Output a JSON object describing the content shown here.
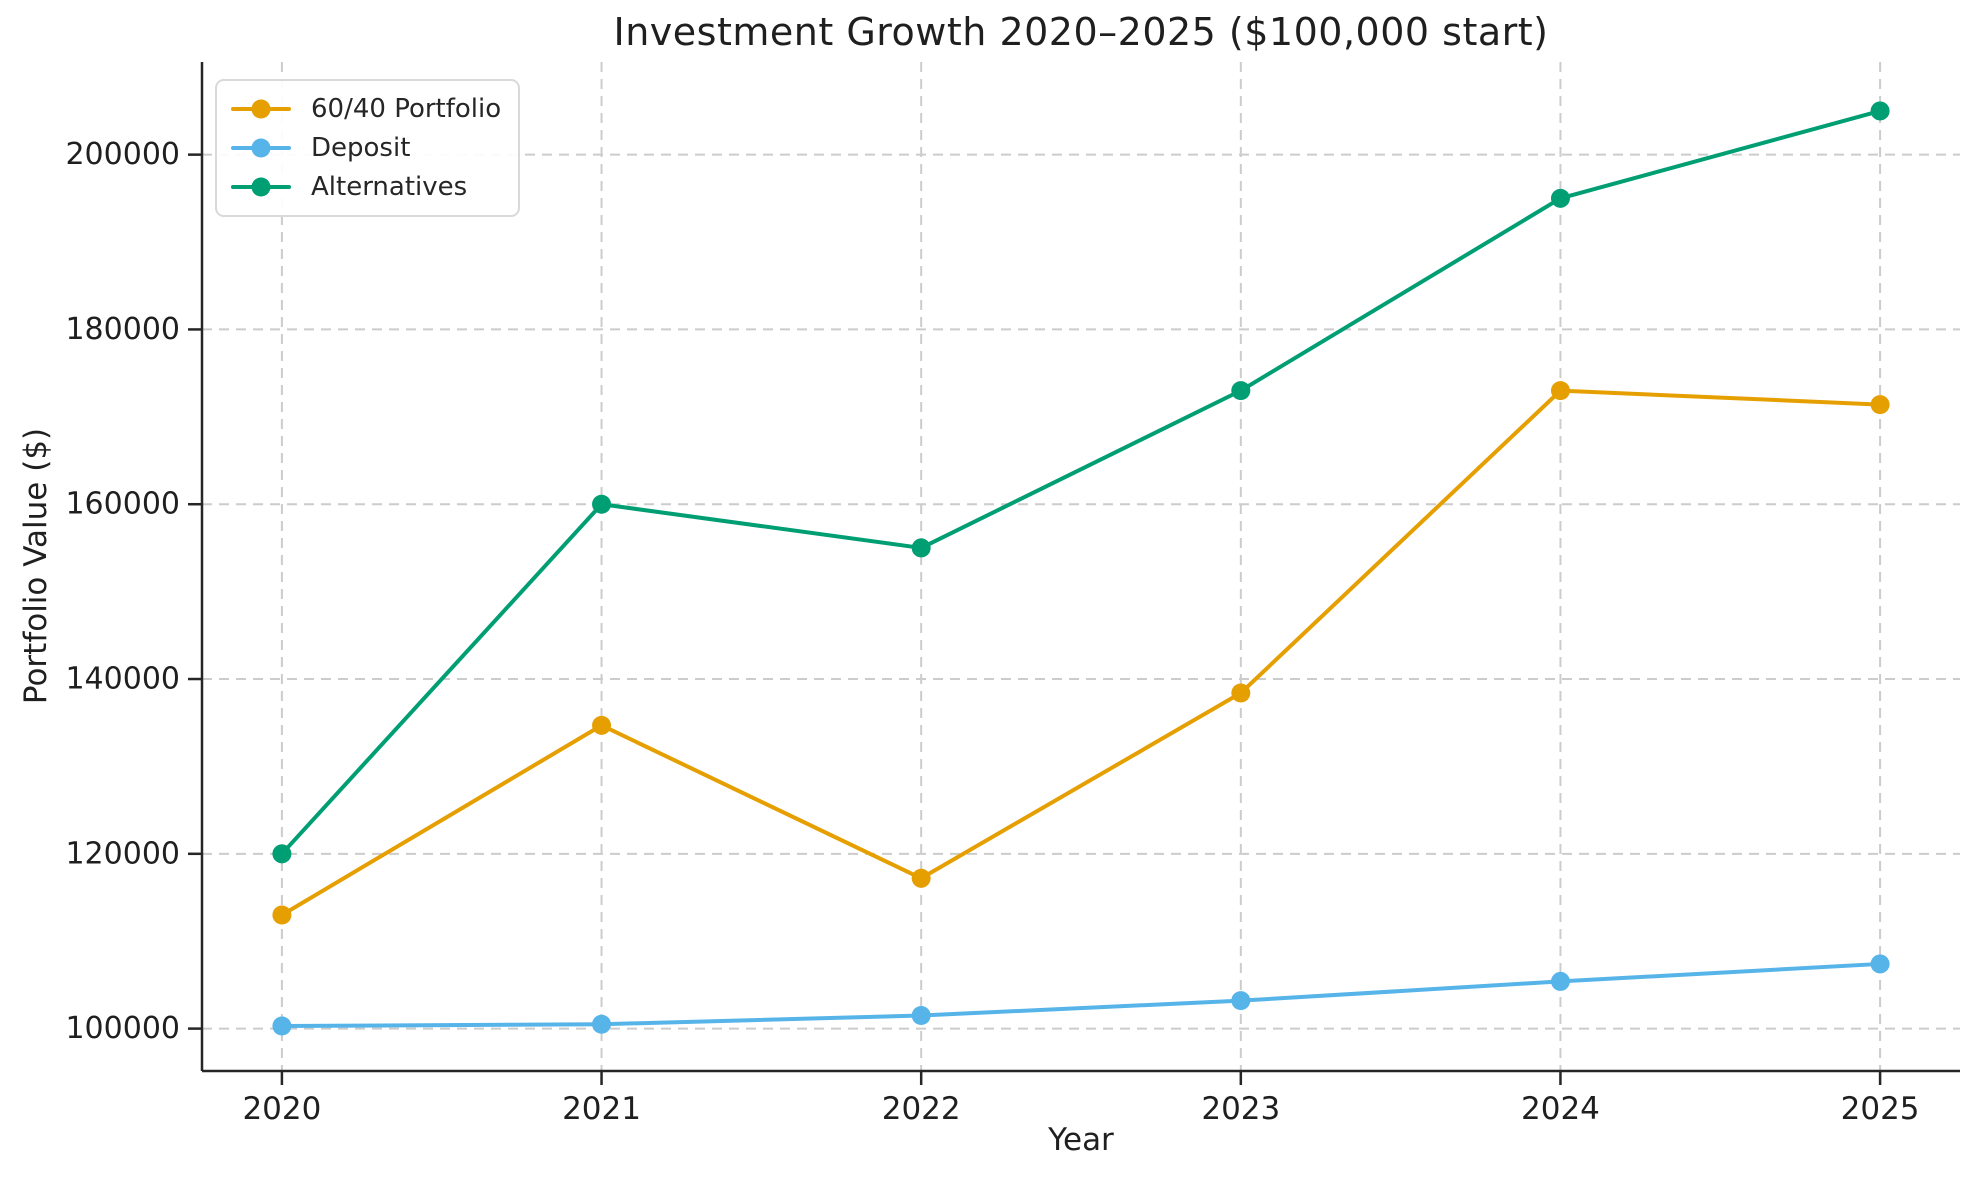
{
  "chart_data": {
    "type": "line",
    "title": "Investment Growth 2020–2025 ($100,000 start)",
    "xlabel": "Year",
    "ylabel": "Portfolio Value ($)",
    "x": [
      2020,
      2021,
      2022,
      2023,
      2024,
      2025
    ],
    "xticks": [
      "2020",
      "2021",
      "2022",
      "2023",
      "2024",
      "2025"
    ],
    "yticks": [
      100000,
      120000,
      140000,
      160000,
      180000,
      200000
    ],
    "ytick_labels": [
      "100000",
      "120000",
      "140000",
      "160000",
      "180000",
      "200000"
    ],
    "xlim": [
      2019.75,
      2025.25
    ],
    "ylim": [
      95150,
      210600
    ],
    "grid": "dashed",
    "legend_position": "upper-left",
    "series": [
      {
        "name": "60/40 Portfolio",
        "color": "#E69F00",
        "values": [
          113000,
          134700,
          117200,
          138400,
          173000,
          171400
        ]
      },
      {
        "name": "Deposit",
        "color": "#56B4E9",
        "values": [
          100300,
          100500,
          101500,
          103200,
          105400,
          107400
        ]
      },
      {
        "name": "Alternatives",
        "color": "#009E73",
        "values": [
          120000,
          160000,
          155000,
          173000,
          195000,
          205000
        ]
      }
    ]
  },
  "style": {
    "grid_color": "#cccccc",
    "spine_color": "#262626",
    "tick_label_color": "#1f1f1f",
    "background": "#ffffff"
  }
}
